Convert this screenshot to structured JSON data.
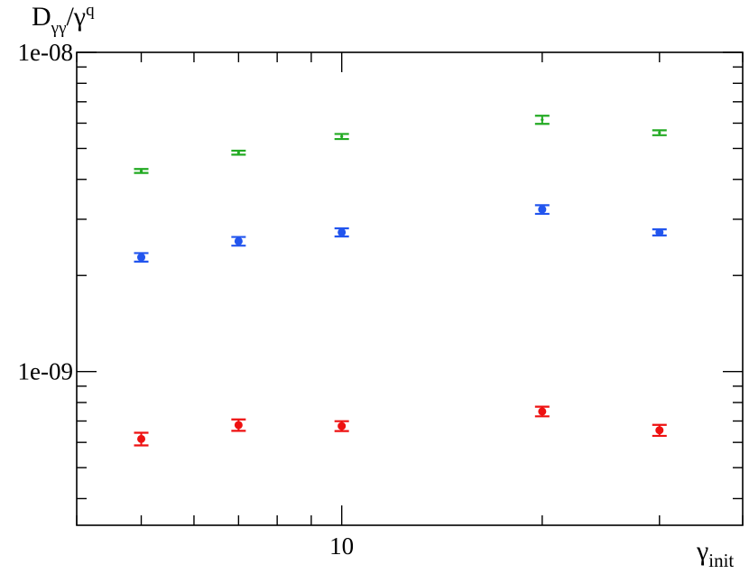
{
  "chart_data": {
    "type": "scatter",
    "x_scale": "log",
    "y_scale": "log",
    "xlim": [
      4,
      40
    ],
    "ylim": [
      3.3e-10,
      1e-08
    ],
    "ylabel": {
      "main": "D",
      "sub": "γγ",
      "sep": "/γ",
      "sup": "q"
    },
    "xlabel": {
      "main": "γ",
      "sub": "init"
    },
    "y_tick_labels": [
      {
        "value": 1e-08,
        "label": "1e-08"
      },
      {
        "value": 1e-09,
        "label": "1e-09"
      }
    ],
    "x_tick_labels": [
      {
        "value": 10,
        "label": "10"
      }
    ],
    "grid": false,
    "series": [
      {
        "color": "#22aa22",
        "marker": "none",
        "points": [
          {
            "x": 5,
            "y": 4.25e-09,
            "err": 6e-11
          },
          {
            "x": 7,
            "y": 4.85e-09,
            "err": 7e-11
          },
          {
            "x": 10,
            "y": 5.45e-09,
            "err": 1e-10
          },
          {
            "x": 20,
            "y": 6.15e-09,
            "err": 1.8e-10
          },
          {
            "x": 30,
            "y": 5.6e-09,
            "err": 1e-10
          }
        ]
      },
      {
        "color": "#2255ee",
        "marker": "circle",
        "points": [
          {
            "x": 5,
            "y": 2.28e-09,
            "err": 7e-11
          },
          {
            "x": 7,
            "y": 2.56e-09,
            "err": 8e-11
          },
          {
            "x": 10,
            "y": 2.73e-09,
            "err": 8e-11
          },
          {
            "x": 20,
            "y": 3.22e-09,
            "err": 1e-10
          },
          {
            "x": 30,
            "y": 2.73e-09,
            "err": 6e-11
          }
        ]
      },
      {
        "color": "#ee1111",
        "marker": "circle",
        "points": [
          {
            "x": 5,
            "y": 6.15e-10,
            "err": 2.8e-11
          },
          {
            "x": 7,
            "y": 6.8e-10,
            "err": 2.8e-11
          },
          {
            "x": 10,
            "y": 6.75e-10,
            "err": 2.4e-11
          },
          {
            "x": 20,
            "y": 7.5e-10,
            "err": 2.6e-11
          },
          {
            "x": 30,
            "y": 6.55e-10,
            "err": 2.6e-11
          }
        ]
      }
    ]
  }
}
